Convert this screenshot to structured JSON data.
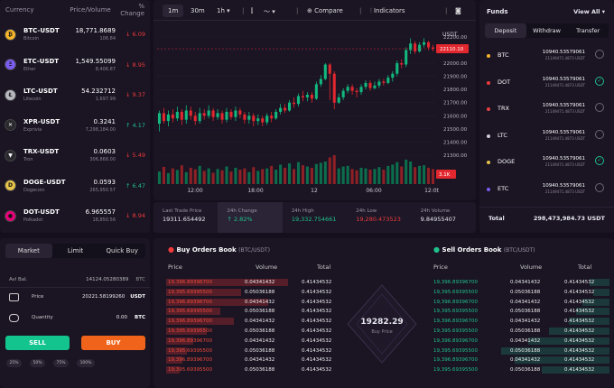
{
  "markets": {
    "headers": [
      "Currency",
      "Price/Volume",
      "% Change"
    ],
    "rows": [
      {
        "pair": "BTC-USDT",
        "name": "Bitcoin",
        "price": "18,771.8689",
        "volume": "106.84",
        "change": "6.09",
        "dir": "down",
        "color": "#f7b52c",
        "glyph": "₿"
      },
      {
        "pair": "ETC-USDT",
        "name": "Ether",
        "price": "1,549.55099",
        "volume": "8,406.87",
        "change": "8.95",
        "dir": "down",
        "color": "#7b5cf0",
        "glyph": "Ξ"
      },
      {
        "pair": "LTC-USDT",
        "name": "Litecoin",
        "price": "54.232712",
        "volume": "1,697.99",
        "change": "9.37",
        "dir": "down",
        "color": "#b8b8c0",
        "glyph": "Ł"
      },
      {
        "pair": "XPR-USDT",
        "name": "Expriviа",
        "price": "0.3241",
        "volume": "7,298,184.00",
        "change": "4.17",
        "dir": "up",
        "color": "#2a2a2e",
        "glyph": "✕"
      },
      {
        "pair": "TRX-USDT",
        "name": "Tron",
        "price": "0.0603",
        "volume": "306,868.00",
        "change": "5.49",
        "dir": "down",
        "color": "#2a2a2e",
        "glyph": "▼"
      },
      {
        "pair": "DOGE-USDT",
        "name": "Dogecoin",
        "price": "0.0593",
        "volume": "265,950.57",
        "change": "6.47",
        "dir": "up",
        "color": "#e6c34a",
        "glyph": "D"
      },
      {
        "pair": "DOT-USDT",
        "name": "Polkadot",
        "price": "6.965557",
        "volume": "18,850.56",
        "change": "8.94",
        "dir": "down",
        "color": "#e6007a",
        "glyph": "●"
      }
    ]
  },
  "order_form": {
    "tabs": [
      "Market",
      "Limit",
      "Quick Buy"
    ],
    "avl_label": "Avl Bal.",
    "avl_value": "14124.05280389",
    "avl_unit": "BTC",
    "price_label": "Price",
    "price_value": "20221.58199260",
    "price_unit": "USDT",
    "qty_label": "Quantity",
    "qty_value": "0.00",
    "qty_unit": "BTC",
    "sell_label": "SELL",
    "buy_label": "BUY",
    "percents": [
      "25%",
      "50%",
      "75%",
      "100%"
    ]
  },
  "chart_toolbar": {
    "intervals": [
      "1m",
      "30m",
      "1h ▾"
    ],
    "compare": "Compare",
    "indicators": "Indicators"
  },
  "chart_data": {
    "type": "candlestick",
    "currency": "USDT",
    "y_ticks": [
      "22200.00",
      "22100.00",
      "22000.00",
      "21900.00",
      "21800.00",
      "21700.00",
      "21600.00",
      "21500.00",
      "21400.00",
      "21300.00"
    ],
    "x_ticks": [
      "12:00",
      "18:00",
      "12",
      "06:00",
      "12:0t"
    ],
    "ylim": [
      21300,
      22220
    ],
    "last_price_tag": "22110.10",
    "volume_tag": "3.1K",
    "candles": [
      [
        21540,
        21620,
        21480,
        21640
      ],
      [
        21620,
        21560,
        21540,
        21660
      ],
      [
        21560,
        21610,
        21520,
        21640
      ],
      [
        21610,
        21580,
        21550,
        21650
      ],
      [
        21580,
        21630,
        21560,
        21670
      ],
      [
        21630,
        21570,
        21530,
        21650
      ],
      [
        21570,
        21640,
        21540,
        21680
      ],
      [
        21640,
        21600,
        21570,
        21670
      ],
      [
        21600,
        21560,
        21530,
        21630
      ],
      [
        21560,
        21620,
        21540,
        21660
      ],
      [
        21620,
        21600,
        21570,
        21650
      ],
      [
        21600,
        21640,
        21580,
        21680
      ],
      [
        21640,
        21590,
        21560,
        21660
      ],
      [
        21590,
        21620,
        21570,
        21650
      ],
      [
        21620,
        21570,
        21540,
        21640
      ],
      [
        21570,
        21630,
        21550,
        21660
      ],
      [
        21630,
        21590,
        21570,
        21650
      ],
      [
        21590,
        21640,
        21560,
        21670
      ],
      [
        21640,
        21610,
        21580,
        21660
      ],
      [
        21610,
        21570,
        21540,
        21630
      ],
      [
        21570,
        21600,
        21540,
        21630
      ],
      [
        21600,
        21560,
        21520,
        21620
      ],
      [
        21560,
        21580,
        21530,
        21610
      ],
      [
        21580,
        21550,
        21520,
        21600
      ],
      [
        21550,
        21600,
        21530,
        21620
      ],
      [
        21600,
        21580,
        21550,
        21630
      ],
      [
        21580,
        21630,
        21570,
        21650
      ],
      [
        21630,
        21660,
        21610,
        21690
      ],
      [
        21660,
        21640,
        21620,
        21690
      ],
      [
        21640,
        21700,
        21630,
        21720
      ],
      [
        21700,
        21690,
        21660,
        21740
      ],
      [
        21690,
        21750,
        21670,
        21770
      ],
      [
        21750,
        21740,
        21710,
        21790
      ],
      [
        21740,
        21760,
        21710,
        21780
      ],
      [
        21760,
        21730,
        21700,
        21780
      ],
      [
        21730,
        21840,
        21720,
        21860
      ],
      [
        21840,
        21880,
        21820,
        21910
      ],
      [
        21880,
        21990,
        21870,
        22000
      ],
      [
        21990,
        21920,
        21720,
        22000
      ],
      [
        21920,
        21700,
        21650,
        21940
      ],
      [
        21700,
        21740,
        21690,
        21770
      ],
      [
        21740,
        21790,
        21720,
        21810
      ],
      [
        21790,
        21820,
        21770,
        21840
      ],
      [
        21820,
        21790,
        21760,
        21840
      ],
      [
        21790,
        21780,
        21740,
        21810
      ],
      [
        21780,
        21820,
        21760,
        21840
      ],
      [
        21820,
        21850,
        21800,
        21870
      ],
      [
        21850,
        21810,
        21790,
        21870
      ],
      [
        21810,
        21830,
        21800,
        21860
      ],
      [
        21830,
        21860,
        21810,
        21880
      ],
      [
        21860,
        21850,
        21830,
        21880
      ],
      [
        21850,
        21890,
        21840,
        21910
      ],
      [
        21890,
        21920,
        21860,
        21940
      ],
      [
        21920,
        22000,
        21900,
        22020
      ],
      [
        22000,
        21990,
        21960,
        22030
      ],
      [
        21990,
        22100,
        21970,
        22120
      ],
      [
        22100,
        22150,
        22070,
        22190
      ],
      [
        22150,
        22090,
        22070,
        22170
      ],
      [
        22090,
        22140,
        22080,
        22160
      ],
      [
        22140,
        22160,
        22120,
        22190
      ],
      [
        22160,
        22120,
        22100,
        22170
      ],
      [
        22120,
        22110,
        22090,
        22140
      ]
    ],
    "volumes": [
      40,
      55,
      35,
      50,
      45,
      60,
      38,
      52,
      47,
      58,
      42,
      50,
      36,
      48,
      44,
      56,
      40,
      52,
      46,
      50,
      38,
      54,
      42,
      48,
      50,
      58,
      46,
      62,
      52,
      66,
      48,
      70,
      60,
      56,
      52,
      64,
      68,
      72,
      85,
      92,
      50,
      56,
      58,
      48,
      44,
      52,
      50,
      46,
      48,
      54,
      46,
      58,
      62,
      70,
      56,
      78,
      72,
      54,
      58,
      60,
      52,
      48
    ],
    "stats": [
      {
        "label": "Last Trade Price",
        "value": "19311.654492",
        "color": "#ffffff"
      },
      {
        "label": "24h Change",
        "value": "2.82%",
        "color": "#21c08b",
        "arrow": "↑"
      },
      {
        "label": "24h High",
        "value": "19,332.754661",
        "color": "#21c08b"
      },
      {
        "label": "24h Low",
        "value": "19,280.473523",
        "color": "#ef3b3b"
      },
      {
        "label": "24h Volume",
        "value": "9.84955407",
        "color": "#ffffff"
      }
    ]
  },
  "funds": {
    "title": "Funds",
    "view_all": "View All ▾",
    "tabs": [
      "Deposit",
      "Withdraw",
      "Transfer"
    ],
    "rows": [
      {
        "sym": "BTC",
        "color": "#f7b52c",
        "a1": "10940.53579061",
        "a2": "21149471.4873 USDT",
        "checked": false
      },
      {
        "sym": "DOT",
        "color": "#ef3b3b",
        "a1": "10940.53579061",
        "a2": "21149471.4873 USDT",
        "checked": true
      },
      {
        "sym": "TRX",
        "color": "#e84142",
        "a1": "10940.53579061",
        "a2": "21149471.4873 USDT",
        "checked": false
      },
      {
        "sym": "LTC",
        "color": "#cfcfd6",
        "a1": "10940.53579061",
        "a2": "21149471.4873 USDT",
        "checked": false
      },
      {
        "sym": "DOGE",
        "color": "#e6c34a",
        "a1": "10940.53579061",
        "a2": "21149471.4873 USDT",
        "checked": true
      },
      {
        "sym": "ETC",
        "color": "#7b5cf0",
        "a1": "10940.53579061",
        "a2": "21149471.4873 USDT",
        "checked": false
      }
    ],
    "total_label": "Total",
    "total_value": "298,473,984.73",
    "total_unit": "USDT"
  },
  "books": {
    "buy_title": "Buy Orders Book",
    "sell_title": "Sell Orders Book",
    "pair": "(BTC/USDT)",
    "headers": [
      "Price",
      "Volume",
      "Total"
    ],
    "buy_rows": [
      [
        "19,396.89396700",
        "0.04341432",
        "0.41434532"
      ],
      [
        "19,395.69395500",
        "0.05036188",
        "0.41434532"
      ],
      [
        "19,396.89396700",
        "0.04341432",
        "0.41434532"
      ],
      [
        "19,395.69395500",
        "0.05036188",
        "0.41434532"
      ],
      [
        "19,396.89396700",
        "0.04341432",
        "0.41434532"
      ],
      [
        "19,395.69395500",
        "0.05036188",
        "0.41434532"
      ],
      [
        "19,396.89396700",
        "0.04341432",
        "0.41434532"
      ],
      [
        "19,395.69395500",
        "0.05036188",
        "0.41434532"
      ],
      [
        "19,396.89396700",
        "0.04341432",
        "0.41434532"
      ],
      [
        "19,395.69395500",
        "0.05036188",
        "0.41434532"
      ]
    ],
    "sell_rows": [
      [
        "19,396.89396700",
        "0.04341432",
        "0.41434532"
      ],
      [
        "19,395.69395500",
        "0.05036188",
        "0.41434532"
      ],
      [
        "19,396.89396700",
        "0.04341432",
        "0.41434532"
      ],
      [
        "19,395.69395500",
        "0.05036188",
        "0.41434532"
      ],
      [
        "19,396.89396700",
        "0.04341432",
        "0.41434532"
      ],
      [
        "19,395.69395500",
        "0.05036188",
        "0.41434532"
      ],
      [
        "19,396.89396700",
        "0.04341432",
        "0.41434532"
      ],
      [
        "19,395.69395500",
        "0.05036188",
        "0.41434532"
      ],
      [
        "19,396.89396700",
        "0.04341432",
        "0.41434532"
      ],
      [
        "19,395.69395500",
        "0.05036188",
        "0.41434532"
      ]
    ],
    "buy_depth": [
      0.9,
      0.55,
      0.75,
      0.4,
      0.5,
      0.3,
      0.2,
      0.15,
      0.12,
      0.1
    ],
    "sell_depth": [
      0.15,
      0.12,
      0.2,
      0.25,
      0.3,
      0.45,
      0.6,
      0.8,
      0.7,
      0.5
    ],
    "center_price": "19282.29",
    "center_label": "Buy Price"
  }
}
